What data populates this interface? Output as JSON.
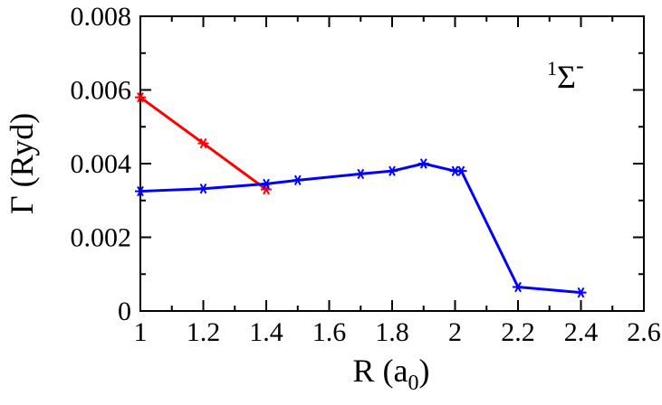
{
  "chart_data": {
    "type": "line",
    "title": "",
    "xlabel": "R (a",
    "xlabel_sub": "0",
    "xlabel_close": ")",
    "ylabel": "Γ (Ryd)",
    "xlim": [
      1,
      2.6
    ],
    "ylim": [
      0,
      0.008
    ],
    "x_major_ticks": [
      1,
      1.2,
      1.4,
      1.6,
      1.8,
      2,
      2.2,
      2.4,
      2.6
    ],
    "x_tick_labels": [
      "1",
      "1.2",
      "1.4",
      "1.6",
      "1.8",
      "2",
      "2.2",
      "2.4",
      "2.6"
    ],
    "y_major_ticks": [
      0,
      0.002,
      0.004,
      0.006,
      0.008
    ],
    "y_tick_labels": [
      "0",
      "0.002",
      "0.004",
      "0.006",
      "0.008"
    ],
    "grid": false,
    "annotation": {
      "superscript": "1",
      "symbol": "Σ",
      "superscript_after": "-",
      "placement": "top-right"
    },
    "series": [
      {
        "color": "#ff0000",
        "marker": "asterisk",
        "x": [
          1.0,
          1.2,
          1.4
        ],
        "y": [
          0.0058,
          0.00455,
          0.0033
        ]
      },
      {
        "color": "#0000ff",
        "marker": "asterisk",
        "x": [
          1.0,
          1.2,
          1.4,
          1.5,
          1.7,
          1.8,
          1.9,
          2.0,
          2.02,
          2.2,
          2.4
        ],
        "y": [
          0.00325,
          0.00332,
          0.00345,
          0.00355,
          0.00372,
          0.0038,
          0.004,
          0.0038,
          0.0038,
          0.00065,
          0.0005
        ]
      }
    ]
  }
}
